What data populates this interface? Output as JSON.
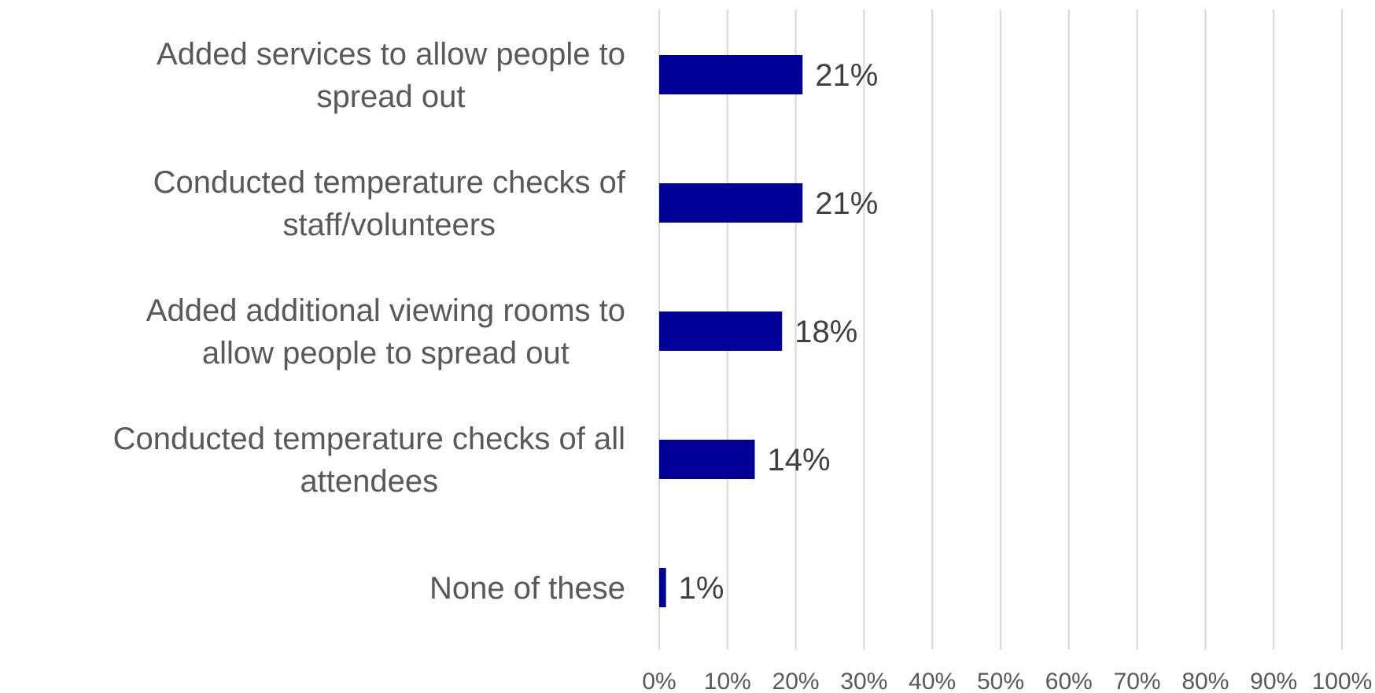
{
  "chart_data": {
    "type": "bar",
    "orientation": "horizontal",
    "categories": [
      [
        "Added services to allow people to",
        "spread out"
      ],
      [
        "Conducted temperature checks of",
        "staff/volunteers"
      ],
      [
        "Added additional viewing rooms to",
        "allow people to spread out"
      ],
      [
        "Conducted temperature checks of all",
        "attendees"
      ],
      [
        "None of these"
      ]
    ],
    "values": [
      21,
      21,
      18,
      14,
      1
    ],
    "data_labels": [
      "21%",
      "21%",
      "18%",
      "14%",
      "1%"
    ],
    "xlim": [
      0,
      100
    ],
    "x_ticks": [
      0,
      10,
      20,
      30,
      40,
      50,
      60,
      70,
      80,
      90,
      100
    ],
    "x_tick_labels": [
      "0%",
      "10%",
      "20%",
      "30%",
      "40%",
      "50%",
      "60%",
      "70%",
      "80%",
      "90%",
      "100%"
    ],
    "grid": "vertical",
    "legend": "none",
    "bar_color": "#000099",
    "title": "",
    "xlabel": "",
    "ylabel": ""
  }
}
